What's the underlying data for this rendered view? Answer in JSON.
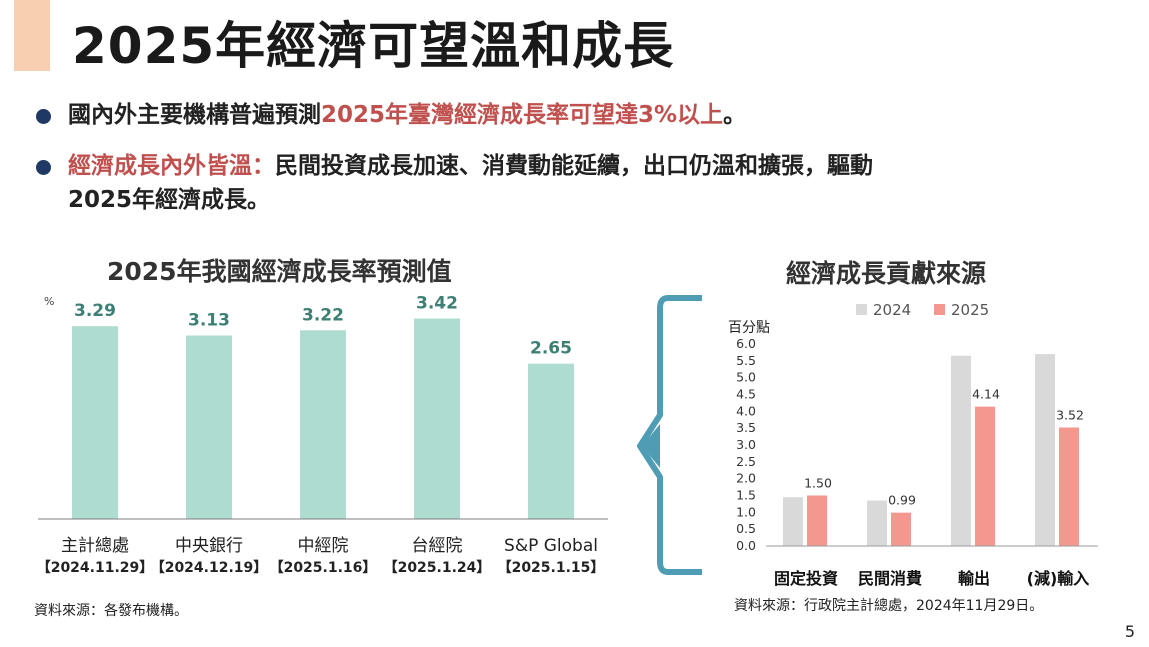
{
  "title": "2025年經濟可望溫和成長",
  "bullets": [
    {
      "pre": "國內外主要機構普遍預測",
      "highlight": "2025年臺灣經濟成長率可望達3%以上",
      "post": "。"
    },
    {
      "highlight": "經濟成長內外皆溫：",
      "line1": "民間投資成長加速、消費動能延續，出口仍溫和擴張，驅動",
      "line2": "2025年經濟成長。"
    }
  ],
  "left_chart_title": "2025年我國經濟成長率預測值",
  "right_chart_title": "經濟成長貢獻來源",
  "left_source": "資料來源：各發布機構。",
  "right_source": "資料來源：行政院主計總處，2024年11月29日。",
  "page_number": "5",
  "colors": {
    "teal_bar": "#aedcd1",
    "teal_label": "#3d7f74",
    "grey_bar": "#d9d9d9",
    "salmon_bar": "#f4978e",
    "bracket": "#4f9cb5",
    "dot": "#1f3864",
    "highlight": "#c0504d"
  },
  "chart_data": [
    {
      "type": "bar",
      "title": "2025年我國經濟成長率預測值",
      "ylabel": "%",
      "categories": [
        "主計總處",
        "中央銀行",
        "中經院",
        "台經院",
        "S&P Global"
      ],
      "dates": [
        "【2024.11.29】",
        "【2024.12.19】",
        "【2025.1.16】",
        "【2025.1.24】",
        "【2025.1.15】"
      ],
      "values": [
        3.29,
        3.13,
        3.22,
        3.42,
        2.65
      ],
      "value_labels": [
        "3.29",
        "3.13",
        "3.22",
        "3.42",
        "2.65"
      ],
      "ylim": [
        0,
        3.6
      ]
    },
    {
      "type": "bar",
      "title": "經濟成長貢獻來源",
      "ylabel": "百分點",
      "categories": [
        "固定投資",
        "民間消費",
        "輸出",
        "(減)輸入"
      ],
      "series": [
        {
          "name": "2024",
          "values": [
            1.45,
            1.35,
            5.65,
            5.7
          ],
          "labels": [
            "",
            "",
            "",
            ""
          ]
        },
        {
          "name": "2025",
          "values": [
            1.5,
            0.99,
            4.14,
            3.52
          ],
          "labels": [
            "1.50",
            "0.99",
            "4.14",
            "3.52"
          ]
        }
      ],
      "ylim": [
        0,
        6
      ],
      "yticks": [
        "0.0",
        "0.5",
        "1.0",
        "1.5",
        "2.0",
        "2.5",
        "3.0",
        "3.5",
        "4.0",
        "4.5",
        "5.0",
        "5.5",
        "6.0"
      ],
      "legend": "top"
    }
  ]
}
